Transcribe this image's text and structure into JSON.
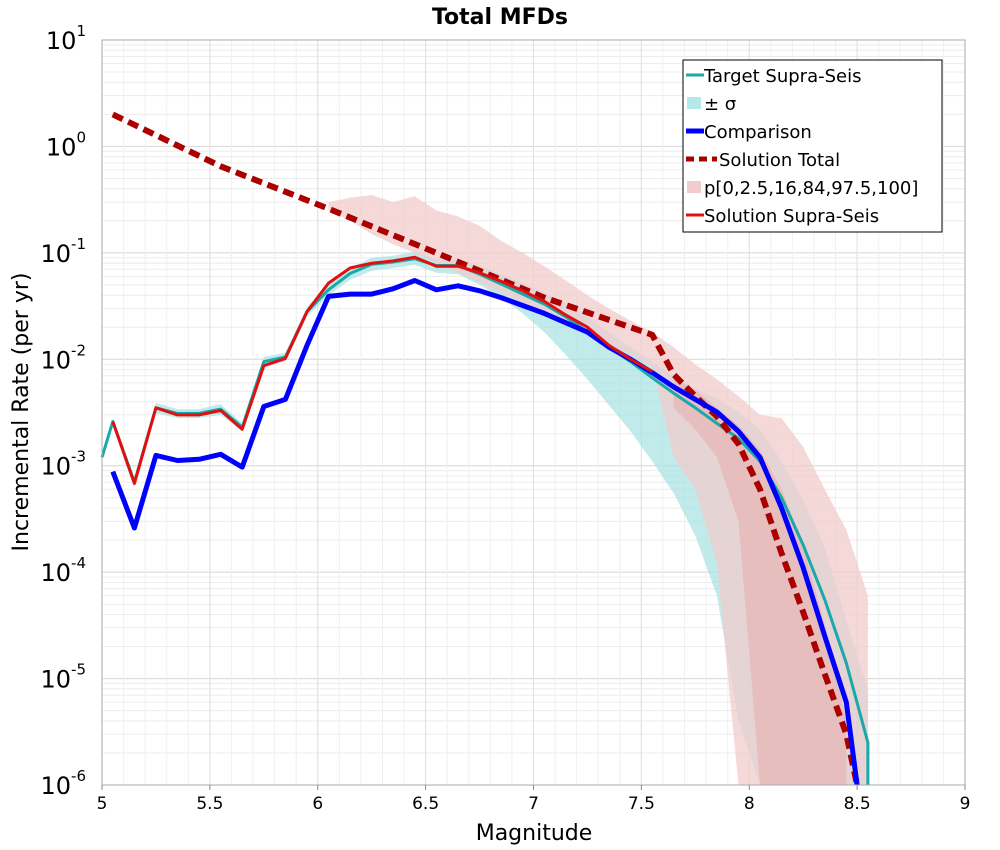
{
  "chart_data": {
    "type": "line",
    "title": "Total MFDs",
    "xlabel": "Magnitude",
    "ylabel": "Incremental Rate (per yr)",
    "xlim": [
      5,
      9
    ],
    "ylim_log10": [
      -6,
      1
    ],
    "yscale": "log",
    "x_ticks": [
      "5",
      "5.5",
      "6",
      "6.5",
      "7",
      "7.5",
      "8",
      "8.5",
      "9"
    ],
    "y_ticks": [
      {
        "base": "10",
        "exp": "1"
      },
      {
        "base": "10",
        "exp": "0"
      },
      {
        "base": "10",
        "exp": "-1"
      },
      {
        "base": "10",
        "exp": "-2"
      },
      {
        "base": "10",
        "exp": "-3"
      },
      {
        "base": "10",
        "exp": "-4"
      },
      {
        "base": "10",
        "exp": "-5"
      },
      {
        "base": "10",
        "exp": "-6"
      }
    ],
    "grid": true,
    "legend_position": "top-right",
    "legend": [
      {
        "label": "Target Supra-Seis",
        "color": "#1aa8a8",
        "style": "line"
      },
      {
        "label": "± σ",
        "color": "#b5e8e8",
        "style": "patch"
      },
      {
        "label": "Comparison",
        "color": "#0000ff",
        "style": "thick"
      },
      {
        "label": "Solution Total",
        "color": "#aa0000",
        "style": "dashed"
      },
      {
        "label": "p[0,2.5,16,84,97.5,100]",
        "color": "#f2cccc",
        "style": "patch"
      },
      {
        "label": "Solution Supra-Seis",
        "color": "#e01010",
        "style": "line"
      }
    ],
    "series": [
      {
        "name": "Target Supra-Seis",
        "color": "#1aa8a8",
        "x": [
          5.0,
          5.05,
          5.15,
          5.25,
          5.35,
          5.45,
          5.55,
          5.65,
          5.75,
          5.85,
          5.95,
          6.05,
          6.15,
          6.25,
          6.35,
          6.45,
          6.55,
          6.65,
          6.75,
          6.85,
          6.95,
          7.05,
          7.15,
          7.25,
          7.35,
          7.45,
          7.55,
          7.65,
          7.75,
          7.85,
          7.95,
          8.05,
          8.15,
          8.25,
          8.35,
          8.45,
          8.55,
          8.55
        ],
        "y": [
          0.0012,
          0.0026,
          0.0007,
          0.0035,
          0.0031,
          0.0031,
          0.0034,
          0.0023,
          0.0095,
          0.0105,
          0.028,
          0.045,
          0.064,
          0.078,
          0.082,
          0.088,
          0.076,
          0.076,
          0.063,
          0.051,
          0.041,
          0.033,
          0.025,
          0.018,
          0.013,
          0.0095,
          0.0067,
          0.0048,
          0.0035,
          0.0025,
          0.0018,
          0.0011,
          0.0005,
          0.00018,
          5.5e-05,
          1.4e-05,
          2.5e-06,
          1e-06
        ]
      },
      {
        "name": "Comparison",
        "color": "#0000ff",
        "x": [
          5.05,
          5.15,
          5.25,
          5.35,
          5.45,
          5.55,
          5.65,
          5.75,
          5.85,
          5.95,
          6.05,
          6.15,
          6.25,
          6.35,
          6.45,
          6.55,
          6.65,
          6.75,
          6.85,
          6.95,
          7.05,
          7.15,
          7.25,
          7.35,
          7.45,
          7.55,
          7.65,
          7.75,
          7.85,
          7.95,
          8.05,
          8.15,
          8.25,
          8.35,
          8.45,
          8.5
        ],
        "y": [
          0.00088,
          0.00026,
          0.00125,
          0.00112,
          0.00115,
          0.00128,
          0.00097,
          0.0036,
          0.0042,
          0.0135,
          0.039,
          0.041,
          0.041,
          0.046,
          0.055,
          0.045,
          0.049,
          0.044,
          0.038,
          0.032,
          0.027,
          0.022,
          0.018,
          0.013,
          0.01,
          0.0075,
          0.0055,
          0.0042,
          0.0032,
          0.0021,
          0.0012,
          0.0004,
          0.00011,
          2.5e-05,
          6e-06,
          1e-06
        ]
      },
      {
        "name": "Solution Total",
        "color": "#aa0000",
        "x": [
          5.05,
          5.55,
          6.05,
          6.55,
          7.05,
          7.55,
          7.65,
          7.75,
          7.85,
          7.95,
          8.05,
          8.15,
          8.25,
          8.35,
          8.45,
          8.5
        ],
        "y": [
          2.0,
          0.65,
          0.26,
          0.1,
          0.038,
          0.017,
          0.0072,
          0.0045,
          0.0029,
          0.0016,
          0.0006,
          0.00015,
          4.2e-05,
          1.1e-05,
          3e-06,
          1e-06
        ]
      },
      {
        "name": "Solution Supra-Seis",
        "color": "#e01010",
        "x": [
          5.05,
          5.15,
          5.25,
          5.35,
          5.45,
          5.55,
          5.65,
          5.75,
          5.85,
          5.95,
          6.05,
          6.15,
          6.25,
          6.35,
          6.45,
          6.55,
          6.65,
          6.75,
          6.85,
          6.95,
          7.05,
          7.15,
          7.25,
          7.35,
          7.45,
          7.55
        ],
        "y": [
          0.0026,
          0.00068,
          0.0035,
          0.003,
          0.003,
          0.0033,
          0.0022,
          0.0087,
          0.0102,
          0.028,
          0.052,
          0.072,
          0.08,
          0.084,
          0.091,
          0.075,
          0.075,
          0.065,
          0.054,
          0.044,
          0.035,
          0.026,
          0.02,
          0.0135,
          0.01,
          0.0077
        ]
      }
    ],
    "bands": [
      {
        "name": "± σ",
        "color": "#a6e3e3",
        "opacity": 0.7,
        "x": [
          5.05,
          5.15,
          5.25,
          5.35,
          5.45,
          5.55,
          5.65,
          5.75,
          5.85,
          5.95,
          6.05,
          6.15,
          6.25,
          6.35,
          6.45,
          6.55,
          6.65,
          6.75,
          6.85,
          6.95,
          7.05,
          7.15,
          7.25,
          7.35,
          7.45,
          7.55,
          7.65,
          7.75,
          7.85,
          7.95,
          8.05,
          8.15,
          8.25,
          8.35,
          8.45,
          8.55
        ],
        "lower": [
          0.0024,
          0.00062,
          0.0031,
          0.0028,
          0.0028,
          0.003,
          0.0021,
          0.0085,
          0.0095,
          0.025,
          0.04,
          0.056,
          0.068,
          0.072,
          0.077,
          0.065,
          0.063,
          0.05,
          0.038,
          0.027,
          0.018,
          0.011,
          0.0065,
          0.0037,
          0.0021,
          0.0011,
          0.00055,
          0.00022,
          6e-05,
          4e-06,
          1e-06,
          1e-06,
          1e-06,
          1e-06,
          1e-06,
          1e-06
        ],
        "upper": [
          0.0028,
          0.00078,
          0.0039,
          0.0034,
          0.0034,
          0.0038,
          0.0025,
          0.0105,
          0.0115,
          0.031,
          0.05,
          0.072,
          0.09,
          0.094,
          0.102,
          0.088,
          0.088,
          0.076,
          0.063,
          0.052,
          0.042,
          0.033,
          0.025,
          0.018,
          0.013,
          0.0095,
          0.007,
          0.0053,
          0.0043,
          0.0032,
          0.0022,
          0.0011,
          0.00048,
          0.00017,
          3.5e-05,
          8e-06
        ]
      },
      {
        "name": "p[0,2.5,16,84,97.5,100] outer",
        "color": "#f2cccc",
        "opacity": 0.75,
        "x": [
          6.05,
          6.15,
          6.25,
          6.35,
          6.45,
          6.55,
          6.65,
          6.75,
          6.85,
          6.95,
          7.05,
          7.15,
          7.25,
          7.35,
          7.45,
          7.55,
          7.65,
          7.75,
          7.85,
          7.95,
          8.05,
          8.15,
          8.25,
          8.35,
          8.45,
          8.55
        ],
        "lower": [
          0.25,
          0.2,
          0.15,
          0.12,
          0.1,
          0.08,
          0.065,
          0.052,
          0.042,
          0.034,
          0.027,
          0.021,
          0.017,
          0.0135,
          0.011,
          0.0085,
          0.0012,
          0.0006,
          0.00012,
          1e-06,
          1e-06,
          1e-06,
          1e-06,
          1e-06,
          1e-06,
          1e-06
        ],
        "upper": [
          0.3,
          0.33,
          0.35,
          0.3,
          0.34,
          0.25,
          0.22,
          0.18,
          0.13,
          0.1,
          0.075,
          0.055,
          0.04,
          0.03,
          0.023,
          0.018,
          0.013,
          0.009,
          0.0065,
          0.0045,
          0.003,
          0.0028,
          0.0015,
          0.0006,
          0.00025,
          6e-05
        ]
      },
      {
        "name": "p[0,2.5,16,84,97.5,100] inner",
        "color": "#e7b5b5",
        "opacity": 0.7,
        "x": [
          7.65,
          7.75,
          7.85,
          7.95,
          8.05,
          8.15,
          8.25,
          8.35,
          8.45
        ],
        "lower": [
          0.0035,
          0.0022,
          0.0012,
          0.0003,
          1e-06,
          1e-06,
          1e-06,
          1e-06,
          1e-06
        ],
        "upper": [
          0.0065,
          0.0052,
          0.0035,
          0.0024,
          0.0014,
          0.0006,
          0.00018,
          3.2e-05,
          4e-06
        ]
      }
    ]
  }
}
